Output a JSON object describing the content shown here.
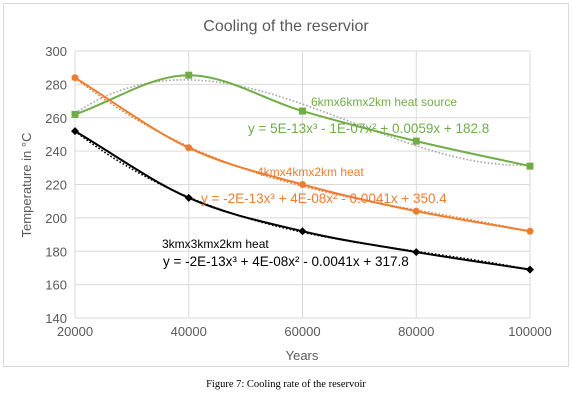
{
  "chart_data": {
    "type": "scatter",
    "title": "Cooling of the reservior",
    "xlabel": "Years",
    "ylabel": "Temperature in °C",
    "xlim": [
      20000,
      100000
    ],
    "ylim": [
      140,
      300
    ],
    "xticks": [
      20000,
      40000,
      60000,
      80000,
      100000
    ],
    "yticks": [
      140,
      160,
      180,
      200,
      220,
      240,
      260,
      280,
      300
    ],
    "grid": true,
    "series": [
      {
        "name": "6kmx6kmx2km heat source",
        "color": "#70ad47",
        "marker": "square",
        "x": [
          20000,
          40000,
          60000,
          80000,
          100000
        ],
        "y": [
          262,
          285.5,
          264,
          246,
          231
        ],
        "trendline": {
          "equation": "y = 5E-13x³ - 1E-07x² + 0.0059x + 182.8",
          "coefficients": [
            5e-13,
            -1e-07,
            0.0059,
            182.8
          ]
        }
      },
      {
        "name": "4kmx4kmx2km heat",
        "color": "#ed7d31",
        "marker": "circle",
        "x": [
          20000,
          40000,
          60000,
          80000,
          100000
        ],
        "y": [
          284,
          242,
          220,
          204,
          192
        ],
        "trendline": {
          "equation": "y = -2E-13x³ + 4E-08x² - 0.0041x + 350.4",
          "coefficients": [
            -2e-13,
            4e-08,
            -0.0041,
            350.4
          ]
        }
      },
      {
        "name": "3kmx3kmx2km heat",
        "color": "#000000",
        "marker": "diamond",
        "x": [
          20000,
          40000,
          60000,
          80000,
          100000
        ],
        "y": [
          252,
          212,
          192,
          179.5,
          169
        ],
        "trendline": {
          "equation": "y = -2E-13x³ + 4E-08x² - 0.0041x + 317.8",
          "coefficients": [
            -2e-13,
            4e-08,
            -0.0041,
            317.8
          ]
        }
      }
    ]
  },
  "caption": "Figure 7: Cooling rate of the reservoir"
}
